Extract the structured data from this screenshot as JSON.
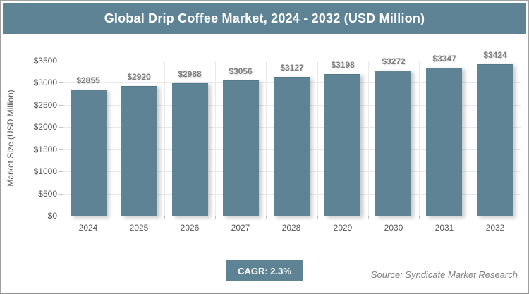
{
  "title_bar": {
    "title": "Global Drip Coffee Market, 2024 - 2032 (USD Million)",
    "bg_color": "#5d8394",
    "text_color": "#ffffff"
  },
  "chart_data": {
    "type": "bar",
    "title": "Global Drip Coffee Market, 2024 - 2032 (USD Million)",
    "categories": [
      "2024",
      "2025",
      "2026",
      "2027",
      "2028",
      "2029",
      "2030",
      "2031",
      "2032"
    ],
    "values": [
      2855,
      2920,
      2988,
      3056,
      3127,
      3198,
      3272,
      3347,
      3424
    ],
    "value_labels": [
      "$2855",
      "$2920",
      "$2988",
      "$3056",
      "$3127",
      "$3198",
      "$3272",
      "$3347",
      "$3424"
    ],
    "xlabel": "",
    "ylabel": "Market Size (USD Million)",
    "ylim": [
      0,
      3500
    ],
    "ytick_step": 500,
    "ytick_labels": [
      "$0",
      "$500",
      "$1000",
      "$1500",
      "$2000",
      "$2500",
      "$3000",
      "$3500"
    ],
    "grid": true,
    "legend": false,
    "bar_color": "#5d8394"
  },
  "footer": {
    "cagr_label": "CAGR: 2.3%",
    "source": "Source: Syndicate Market Research"
  }
}
